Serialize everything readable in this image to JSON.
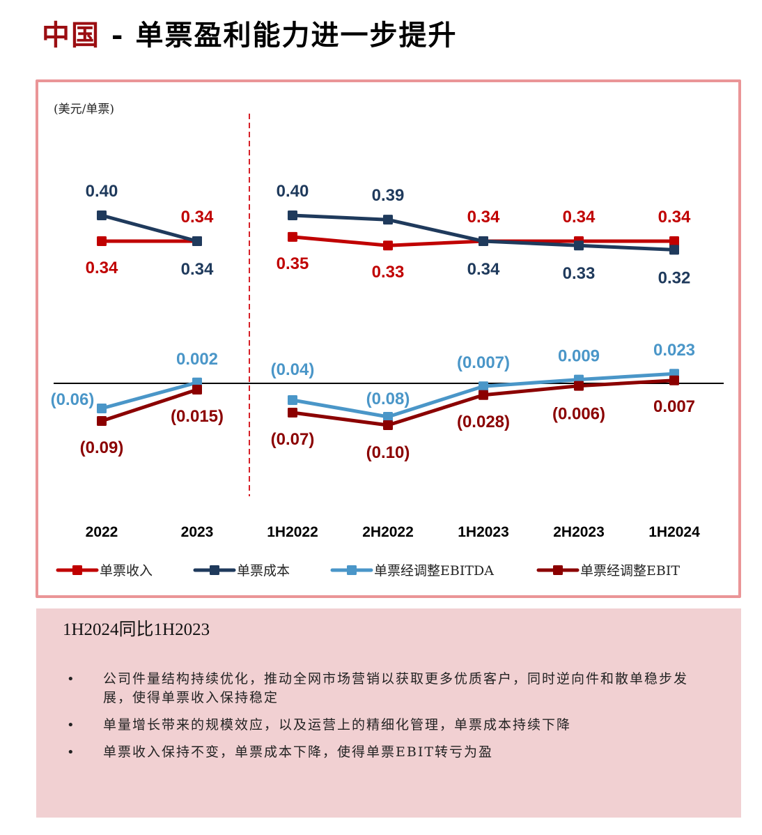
{
  "title": {
    "accent": "中国",
    "separator": " - ",
    "main": "单票盈利能力进一步提升"
  },
  "colors": {
    "revenue": "#c00000",
    "cost": "#1f3a5c",
    "ebitda": "#4a96c8",
    "ebit": "#8b0000",
    "divider": "#d62027",
    "border": "#ea9597",
    "panel": "#f1d0d2"
  },
  "chart_data": {
    "type": "line",
    "unit_label": "(美元/单票)",
    "categories": [
      "2022",
      "2023",
      "1H2022",
      "2H2022",
      "1H2023",
      "2H2023",
      "1H2024"
    ],
    "groups": [
      {
        "name": "annual",
        "categories": [
          "2022",
          "2023"
        ]
      },
      {
        "name": "half-year",
        "categories": [
          "1H2022",
          "2H2022",
          "1H2023",
          "2H2023",
          "1H2024"
        ]
      }
    ],
    "series": [
      {
        "key": "revenue",
        "name": "单票收入",
        "panel": "upper",
        "values": [
          0.34,
          0.34,
          0.35,
          0.33,
          0.34,
          0.34,
          0.34
        ],
        "labels": [
          "0.34",
          "0.34",
          "0.35",
          "0.33",
          "0.34",
          "0.34",
          "0.34"
        ],
        "label_pos": [
          "below",
          "above",
          "below",
          "below",
          "above",
          "above",
          "above"
        ]
      },
      {
        "key": "cost",
        "name": "单票成本",
        "panel": "upper",
        "values": [
          0.4,
          0.34,
          0.4,
          0.39,
          0.34,
          0.33,
          0.32
        ],
        "labels": [
          "0.40",
          "0.34",
          "0.40",
          "0.39",
          "0.34",
          "0.33",
          "0.32"
        ],
        "label_pos": [
          "above",
          "below",
          "above",
          "above",
          "below",
          "below",
          "below"
        ]
      },
      {
        "key": "ebitda",
        "name": "单票经调整EBITDA",
        "panel": "lower",
        "values": [
          -0.06,
          0.002,
          -0.04,
          -0.08,
          -0.007,
          0.009,
          0.023
        ],
        "labels": [
          "(0.06)",
          "0.002",
          "(0.04)",
          "(0.08)",
          "(0.007)",
          "0.009",
          "0.023"
        ],
        "label_pos": [
          "left",
          "above",
          "above",
          "above",
          "above",
          "above",
          "above"
        ]
      },
      {
        "key": "ebit",
        "name": "单票经调整EBIT",
        "panel": "lower",
        "values": [
          -0.09,
          -0.015,
          -0.07,
          -0.1,
          -0.028,
          -0.006,
          0.007
        ],
        "labels": [
          "(0.09)",
          "(0.015)",
          "(0.07)",
          "(0.10)",
          "(0.028)",
          "(0.006)",
          "0.007"
        ],
        "label_pos": [
          "below",
          "below",
          "below",
          "below",
          "below",
          "below",
          "below"
        ]
      }
    ],
    "zero_line": true,
    "grid": false,
    "legend_position": "bottom"
  },
  "info": {
    "title": "1H2024同比1H2023",
    "bullets": [
      "公司件量结构持续优化，推动全网市场营销以获取更多优质客户，同时逆向件和散单稳步发展，使得单票收入保持稳定",
      "单量增长带来的规模效应，以及运营上的精细化管理，单票成本持续下降",
      "单票收入保持不变，单票成本下降，使得单票EBIT转亏为盈"
    ],
    "bullet_symbol": "•"
  }
}
